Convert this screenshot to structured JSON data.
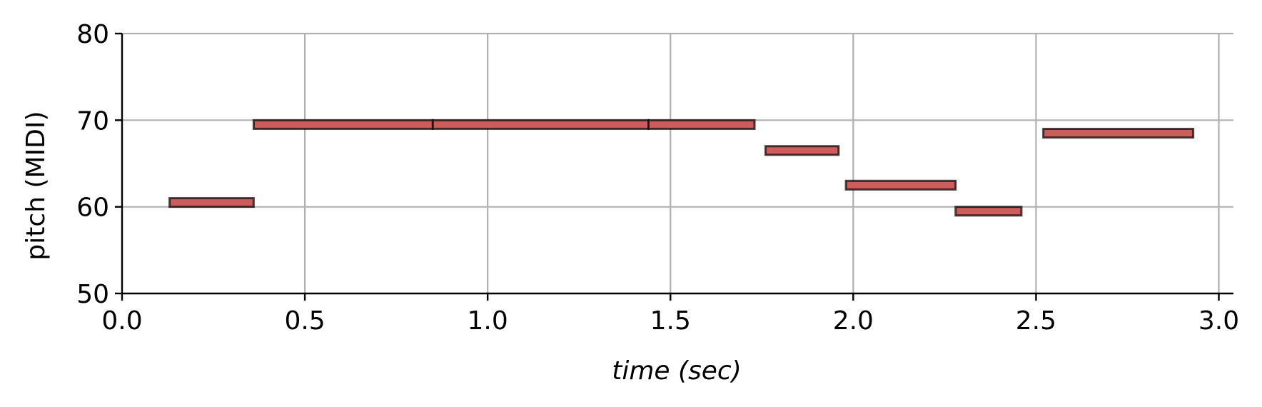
{
  "chart_data": {
    "type": "piano-roll",
    "title": "",
    "xlabel": "time (sec)",
    "ylabel": "pitch (MIDI)",
    "xlim": [
      0.0,
      3.04
    ],
    "ylim": [
      50,
      80
    ],
    "x_ticks": [
      0.0,
      0.5,
      1.0,
      1.5,
      2.0,
      2.5,
      3.0
    ],
    "x_tick_labels": [
      "0.0",
      "0.5",
      "1.0",
      "1.5",
      "2.0",
      "2.5",
      "3.0"
    ],
    "y_ticks": [
      50,
      60,
      70,
      80
    ],
    "y_tick_labels": [
      "50",
      "60",
      "70",
      "80"
    ],
    "grid": true,
    "note_color": "#cd5c5c",
    "edge_color": "#000000",
    "grid_color": "#b0b0b0",
    "notes": [
      {
        "start": 0.13,
        "end": 0.36,
        "pitch": 60
      },
      {
        "start": 0.36,
        "end": 0.85,
        "pitch": 69
      },
      {
        "start": 0.85,
        "end": 1.44,
        "pitch": 69
      },
      {
        "start": 1.44,
        "end": 1.73,
        "pitch": 69
      },
      {
        "start": 1.76,
        "end": 1.96,
        "pitch": 66
      },
      {
        "start": 1.98,
        "end": 2.28,
        "pitch": 62
      },
      {
        "start": 2.28,
        "end": 2.46,
        "pitch": 59
      },
      {
        "start": 2.52,
        "end": 2.93,
        "pitch": 68
      }
    ]
  }
}
